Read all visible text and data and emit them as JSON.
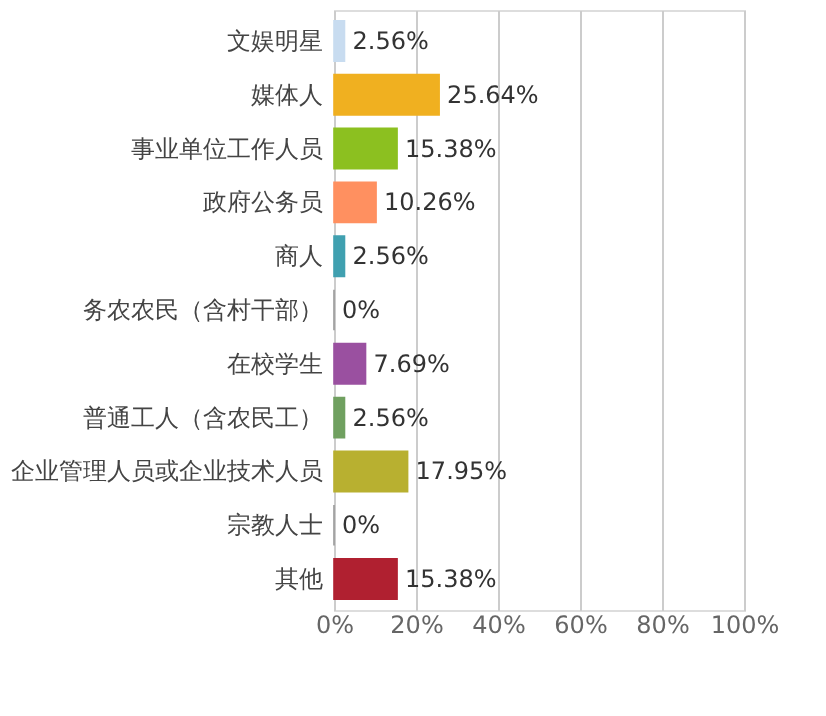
{
  "chart_data": {
    "type": "bar",
    "orientation": "horizontal",
    "categories": [
      "文娱明星",
      "媒体人",
      "事业单位工作人员",
      "政府公务员",
      "商人",
      "务农农民（含村干部）",
      "在校学生",
      "普通工人（含农民工）",
      "企业管理人员或企业技术人员",
      "宗教人士",
      "其他"
    ],
    "values": [
      2.56,
      25.64,
      15.38,
      10.26,
      2.56,
      0,
      7.69,
      2.56,
      17.95,
      0,
      15.38
    ],
    "colors": [
      "#c8dcf0",
      "#f0b020",
      "#8cc020",
      "#ff9060",
      "#40a0b0",
      "#999999",
      "#9a50a0",
      "#70a060",
      "#b8b030",
      "#999999",
      "#b02030"
    ],
    "value_labels": [
      "2.56%",
      "25.64%",
      "15.38%",
      "10.26%",
      "2.56%",
      "0%",
      "7.69%",
      "2.56%",
      "17.95%",
      "0%",
      "15.38%"
    ],
    "xlim": [
      0,
      100
    ],
    "xticks": [
      {
        "value": 0,
        "label": "0%"
      },
      {
        "value": 20,
        "label": "20%"
      },
      {
        "value": 40,
        "label": "40%"
      },
      {
        "value": 60,
        "label": "60%"
      },
      {
        "value": 80,
        "label": "80%"
      },
      {
        "value": 100,
        "label": "100%"
      }
    ],
    "grid": "x"
  }
}
